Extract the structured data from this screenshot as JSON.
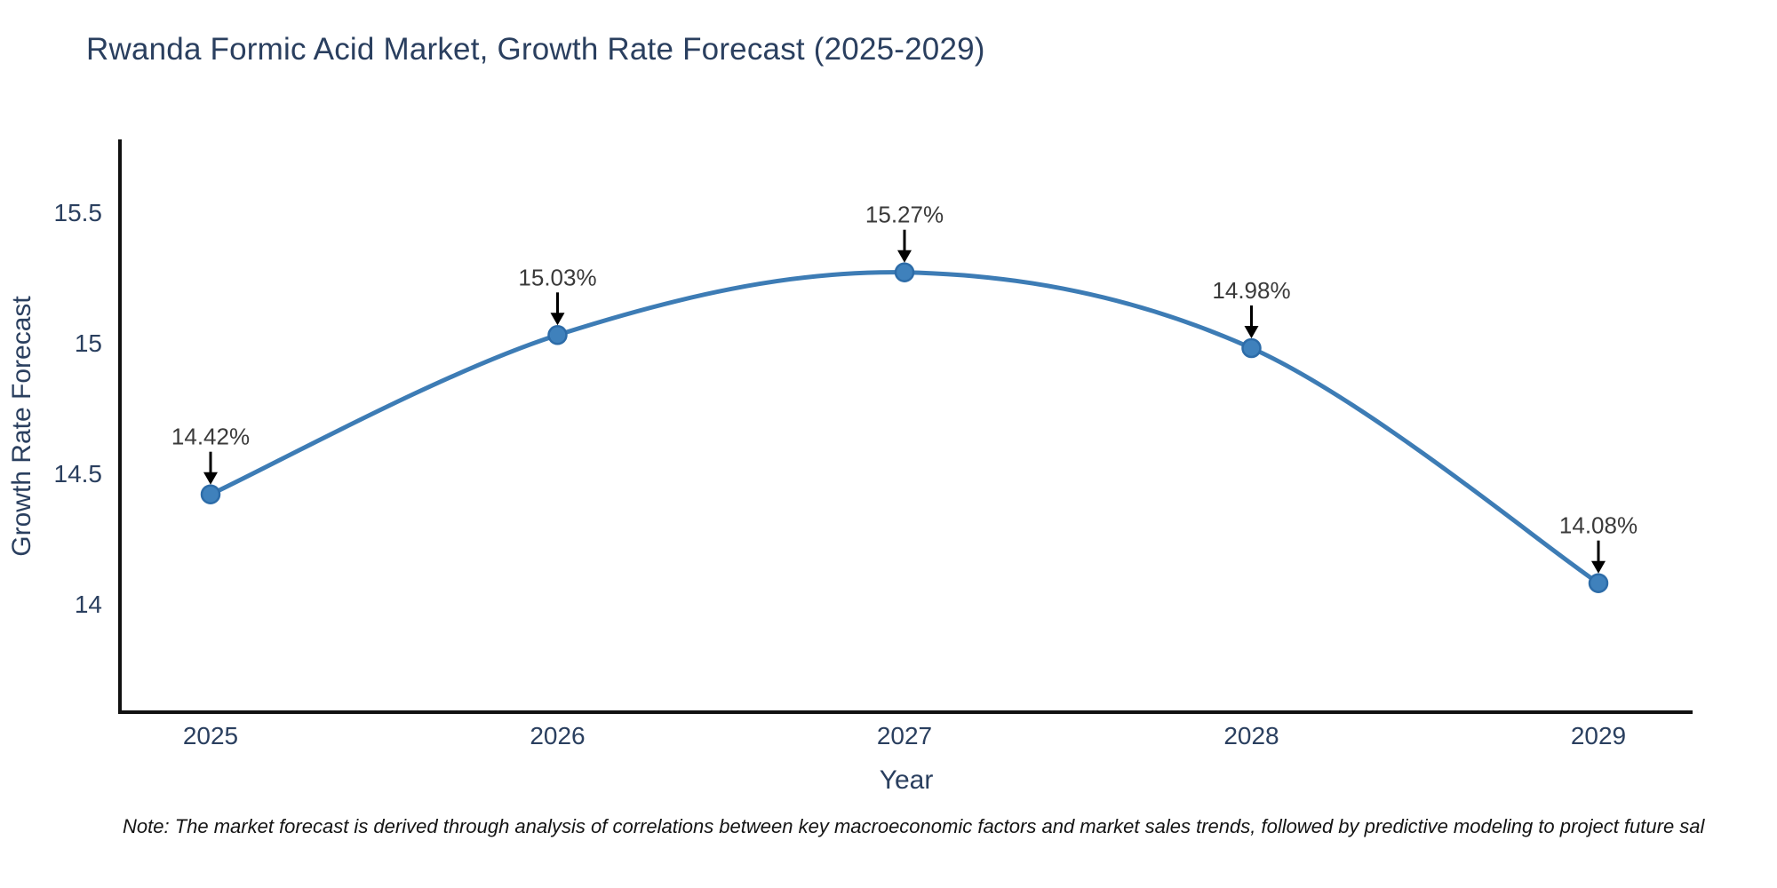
{
  "title": "Rwanda Formic Acid Market, Growth Rate Forecast (2025-2029)",
  "note": "Note: The market forecast is derived through analysis of correlations between key macroeconomic factors and market sales trends, followed by predictive modeling to project future sal",
  "chart_data": {
    "type": "line",
    "title": "Rwanda Formic Acid Market, Growth Rate Forecast (2025-2029)",
    "x": [
      2025,
      2026,
      2027,
      2028,
      2029
    ],
    "categories": [
      "2025",
      "2026",
      "2027",
      "2028",
      "2029"
    ],
    "series": [
      {
        "name": "Growth Rate Forecast",
        "values": [
          14.42,
          15.03,
          15.27,
          14.98,
          14.08
        ]
      }
    ],
    "point_labels": [
      "14.42%",
      "15.03%",
      "15.27%",
      "14.98%",
      "14.08%"
    ],
    "xlabel": "Year",
    "ylabel": "Growth Rate Forecast",
    "yticks": [
      14,
      14.5,
      15,
      15.5
    ],
    "ytick_labels": [
      "14",
      "14.5",
      "15",
      "15.5"
    ],
    "ylim": [
      13.586,
      15.779
    ],
    "grid": false,
    "legend_position": "none",
    "line_shape": "spline",
    "colors": {
      "line": "#3d7cb5",
      "marker_fill": "#3f81bc",
      "marker_edge": "#2d6ca8",
      "axis_line": "#111111",
      "tick_text": "#2a3f5f",
      "axis_title_text": "#2a3f5f",
      "title_text": "#2a3f5f",
      "annotation_text": "#3a3a3a",
      "arrow": "#000000",
      "background": "#ffffff"
    }
  }
}
